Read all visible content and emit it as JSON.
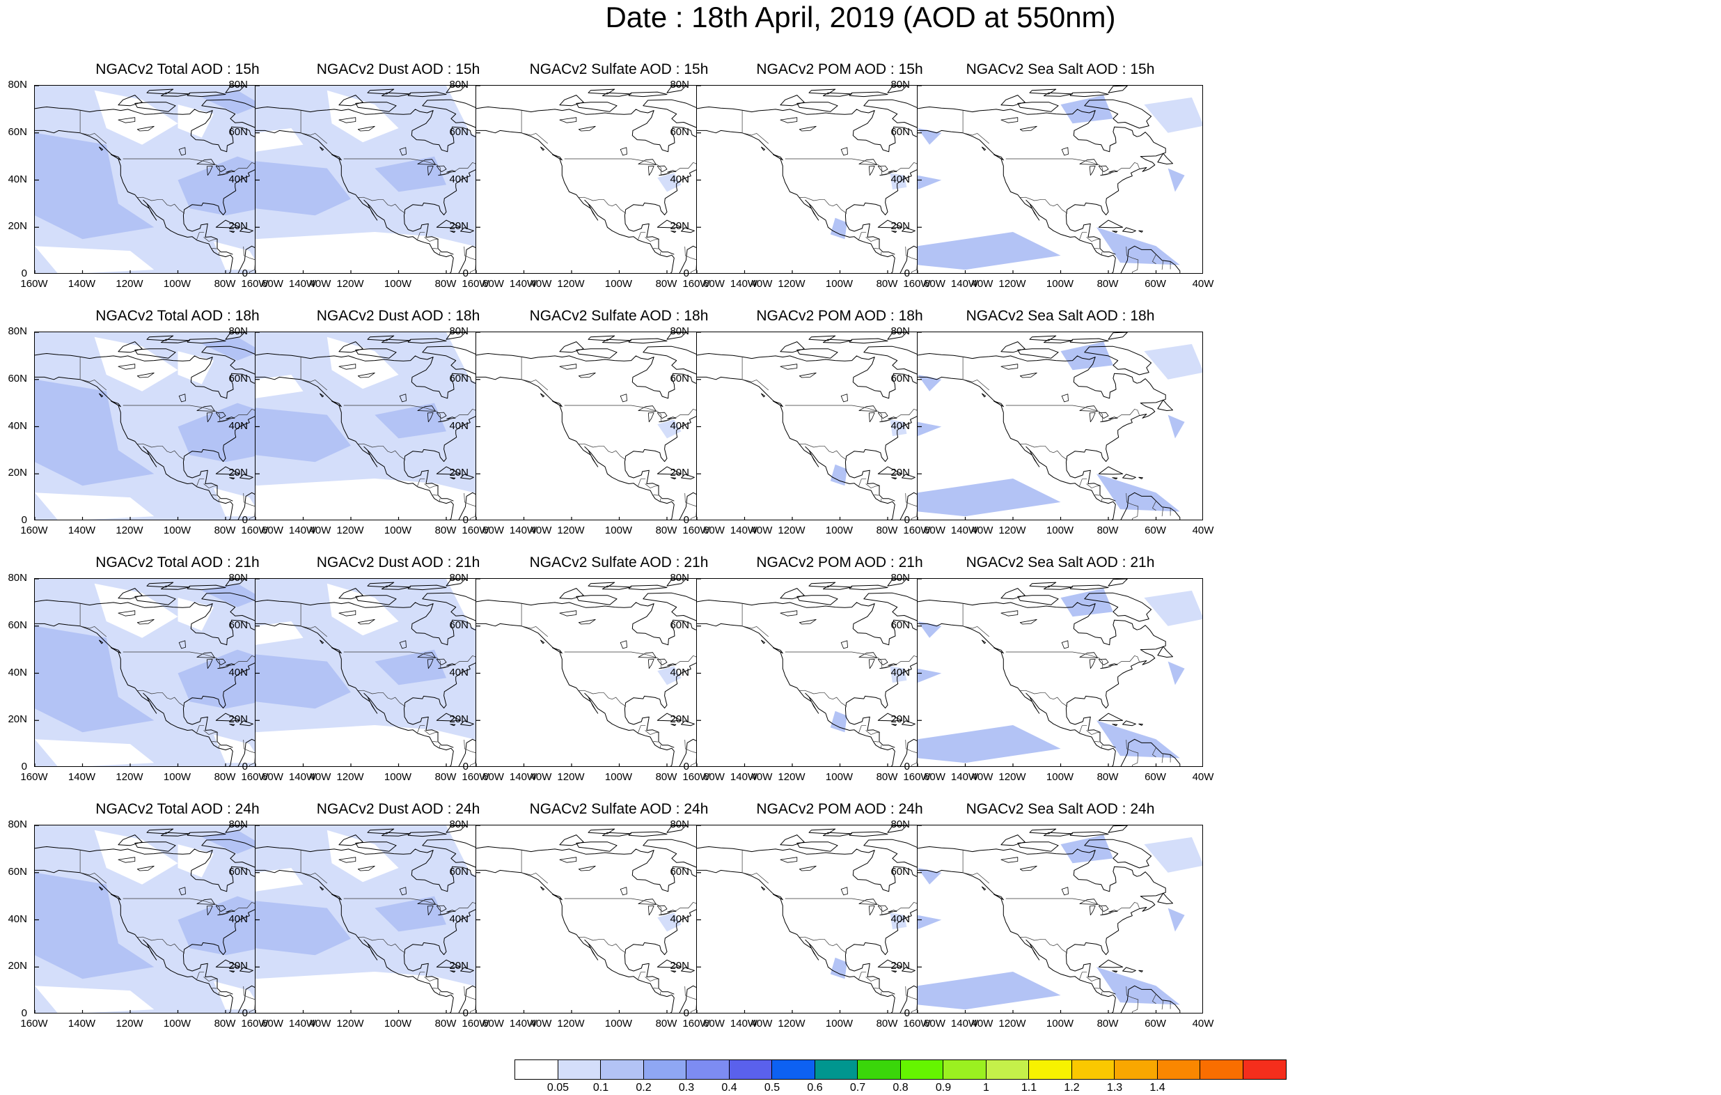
{
  "title": "Date : 18th April, 2019 (AOD at 550nm)",
  "colors": {
    "shade_light": "#d4defa",
    "shade_medium": "#b3c3f5",
    "coastline": "#000000"
  },
  "axes": {
    "lat_ticks": [
      "80N",
      "60N",
      "40N",
      "20N",
      "0"
    ],
    "lon_ticks": [
      "160W",
      "140W",
      "120W",
      "100W",
      "80W",
      "60W",
      "40W"
    ]
  },
  "panels": [
    {
      "title": "NGACv2 Total AOD : 15h",
      "species": "total"
    },
    {
      "title": "NGACv2 Dust AOD : 15h",
      "species": "dust"
    },
    {
      "title": "NGACv2 Sulfate AOD : 15h",
      "species": "sulfate"
    },
    {
      "title": "NGACv2 POM AOD : 15h",
      "species": "pom"
    },
    {
      "title": "NGACv2 Sea Salt AOD : 15h",
      "species": "seasalt"
    },
    {
      "title": "NGACv2 Total AOD : 18h",
      "species": "total"
    },
    {
      "title": "NGACv2 Dust AOD : 18h",
      "species": "dust"
    },
    {
      "title": "NGACv2 Sulfate AOD : 18h",
      "species": "sulfate"
    },
    {
      "title": "NGACv2 POM AOD : 18h",
      "species": "pom"
    },
    {
      "title": "NGACv2 Sea Salt AOD : 18h",
      "species": "seasalt"
    },
    {
      "title": "NGACv2 Total AOD : 21h",
      "species": "total"
    },
    {
      "title": "NGACv2 Dust AOD : 21h",
      "species": "dust"
    },
    {
      "title": "NGACv2 Sulfate AOD : 21h",
      "species": "sulfate"
    },
    {
      "title": "NGACv2 POM AOD : 21h",
      "species": "pom"
    },
    {
      "title": "NGACv2 Sea Salt AOD : 21h",
      "species": "seasalt"
    },
    {
      "title": "NGACv2 Total AOD : 24h",
      "species": "total"
    },
    {
      "title": "NGACv2 Dust AOD : 24h",
      "species": "dust"
    },
    {
      "title": "NGACv2 Sulfate AOD : 24h",
      "species": "sulfate"
    },
    {
      "title": "NGACv2 POM AOD : 24h",
      "species": "pom"
    },
    {
      "title": "NGACv2 Sea Salt  AOD : 24h",
      "species": "seasalt"
    }
  ],
  "colorbar": {
    "colors": [
      "#ffffff",
      "#d4defa",
      "#b3c3f5",
      "#8fa7f3",
      "#7d8cf2",
      "#5a61ec",
      "#0d61f2",
      "#00968f",
      "#3ad60a",
      "#65f500",
      "#9bf020",
      "#c5f04a",
      "#f7f200",
      "#fac800",
      "#f9a700",
      "#fa8700",
      "#f96e00",
      "#f52e1c"
    ],
    "labels": [
      "0.05",
      "0.1",
      "0.2",
      "0.3",
      "0.4",
      "0.5",
      "0.6",
      "0.7",
      "0.8",
      "0.9",
      "1",
      "1.1",
      "1.2",
      "1.3",
      "1.4"
    ]
  }
}
